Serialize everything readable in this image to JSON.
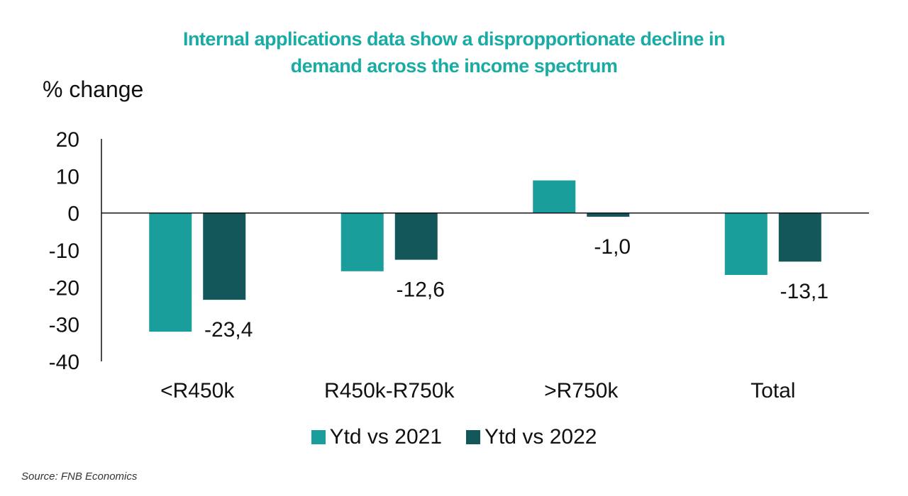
{
  "chart_data": {
    "type": "bar",
    "title_lines": [
      "Internal applications data show a dispropportionate decline in",
      "demand across the income spectrum"
    ],
    "ylabel": "% change",
    "xlabel": "",
    "ylim": [
      -40,
      20
    ],
    "yticks": [
      20,
      10,
      0,
      -10,
      -20,
      -30,
      -40
    ],
    "categories": [
      "<R450k",
      "R450k-R750k",
      ">R750k",
      "Total"
    ],
    "series": [
      {
        "name": "Ytd vs 2021",
        "color": "#1a9e9c",
        "values": [
          -32.0,
          -15.7,
          8.8,
          -16.7
        ],
        "labels": []
      },
      {
        "name": "Ytd vs 2022",
        "color": "#13575a",
        "values": [
          -23.4,
          -12.6,
          -1.0,
          -13.1
        ],
        "labels": [
          "-23,4",
          "-12,6",
          "-1,0",
          "-13,1"
        ]
      }
    ],
    "grid": false,
    "legend_position": "bottom"
  },
  "source": "Source: FNB Economics"
}
